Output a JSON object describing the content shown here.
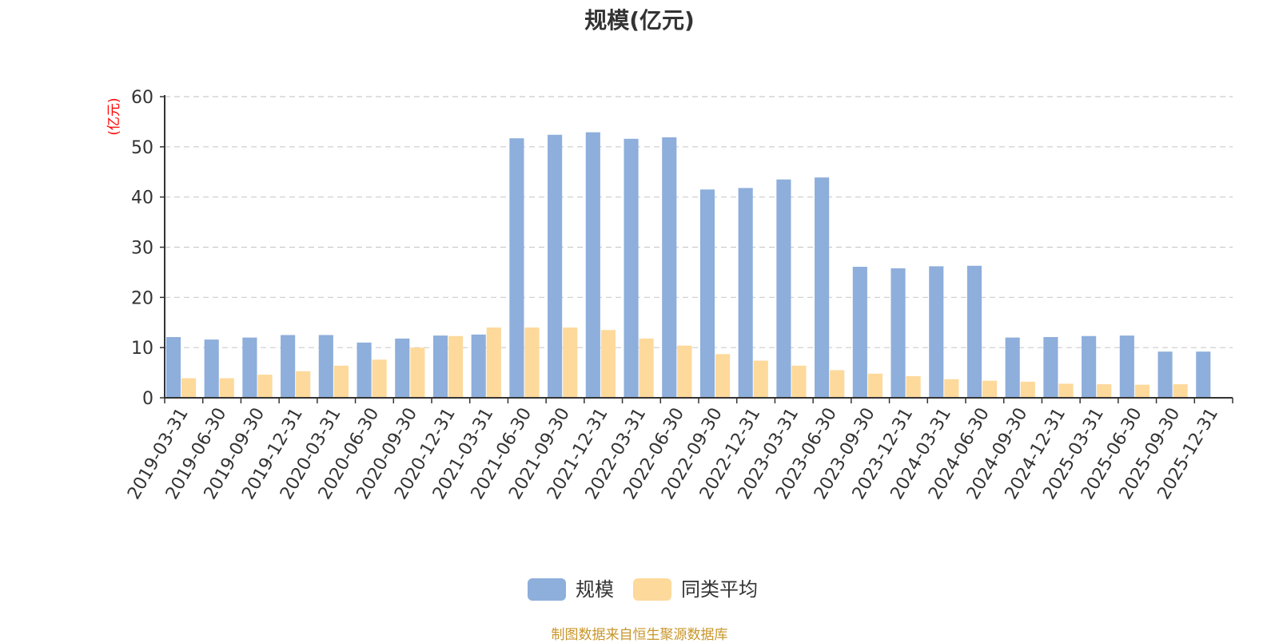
{
  "chart_data": {
    "type": "bar",
    "title": "规模(亿元)",
    "ylabel": "(亿元)",
    "xlabel": "",
    "ylim": [
      0,
      60
    ],
    "yticks": [
      0,
      10,
      20,
      30,
      40,
      50,
      60
    ],
    "grid": true,
    "legend_position": "bottom-center",
    "categories": [
      "2019-03-31",
      "2019-06-30",
      "2019-09-30",
      "2019-12-31",
      "2020-03-31",
      "2020-06-30",
      "2020-09-30",
      "2020-12-31",
      "2021-03-31",
      "2021-06-30",
      "2021-09-30",
      "2021-12-31",
      "2022-03-31",
      "2022-06-30",
      "2022-09-30",
      "2022-12-31",
      "2023-03-31",
      "2023-06-30",
      "2023-09-30",
      "2023-12-31",
      "2024-03-31",
      "2024-06-30",
      "2024-09-30",
      "2024-12-31",
      "2025-03-31",
      "2025-06-30",
      "2025-09-30",
      "2025-12-31"
    ],
    "series": [
      {
        "name": "规模",
        "color": "#8eaedb",
        "values": [
          12.1,
          11.6,
          12.0,
          12.5,
          12.5,
          11.0,
          11.8,
          12.4,
          12.6,
          51.7,
          52.4,
          52.9,
          51.6,
          51.9,
          41.5,
          41.8,
          43.5,
          43.9,
          26.1,
          25.8,
          26.2,
          26.3,
          12.0,
          12.1,
          12.3,
          12.4,
          9.2,
          9.2
        ]
      },
      {
        "name": "同类平均",
        "color": "#fdd99b",
        "values": [
          3.9,
          3.9,
          4.6,
          5.3,
          6.4,
          7.6,
          10.0,
          12.3,
          14.0,
          14.0,
          14.0,
          13.5,
          11.8,
          10.4,
          8.7,
          7.4,
          6.4,
          5.5,
          4.8,
          4.3,
          3.7,
          3.4,
          3.2,
          2.8,
          2.7,
          2.6,
          2.7,
          null
        ]
      }
    ]
  },
  "source_text": "制图数据来自恒生聚源数据库",
  "colors": {
    "axis": "#333333",
    "grid": "#cccccc",
    "ylabel": "#ff0000",
    "source": "#c8962a"
  }
}
